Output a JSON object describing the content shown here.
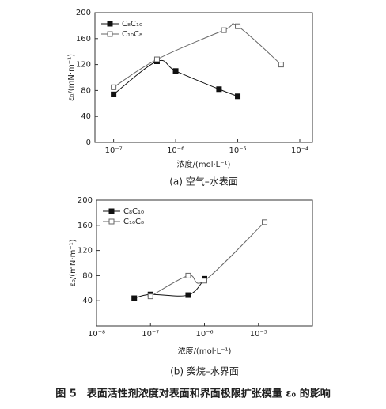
{
  "chart_data": [
    {
      "type": "line",
      "xlog": true,
      "caption": "(a) 空气–水表面",
      "xlabel": "浓度/(mol·L⁻¹)",
      "ylabel": "ε₀/(mN·m⁻¹)",
      "legend": "upper left",
      "xlim": [
        5e-08,
        0.00016
      ],
      "xticks": [
        {
          "value": 1e-07,
          "label": "10⁻⁷"
        },
        {
          "value": 1e-06,
          "label": "10⁻⁶"
        },
        {
          "value": 1e-05,
          "label": "10⁻⁵"
        },
        {
          "value": 0.0001,
          "label": "10⁻⁴"
        }
      ],
      "ylim": [
        0,
        200
      ],
      "yticks": [
        0,
        40,
        80,
        120,
        160,
        200
      ],
      "series": [
        {
          "name": "C₈C₁₀",
          "color": "#111",
          "marker": "filled",
          "x": [
            1e-07,
            5e-07,
            1e-06,
            5e-06,
            1e-05
          ],
          "values": [
            74,
            125,
            110,
            82,
            71
          ]
        },
        {
          "name": "C₁₀C₈",
          "color": "#666",
          "marker": "open",
          "x": [
            1e-07,
            5e-07,
            6e-06,
            1e-05,
            5e-05
          ],
          "values": [
            85,
            128,
            173,
            179,
            120
          ]
        }
      ]
    },
    {
      "type": "line",
      "xlog": true,
      "caption": "(b) 癸烷–水界面",
      "xlabel": "浓度/(mol·L⁻¹)",
      "ylabel": "ε₀/(mN·m⁻¹)",
      "legend": "upper left",
      "xlim": [
        1e-08,
        0.0001
      ],
      "xticks": [
        {
          "value": 1e-08,
          "label": "10⁻⁸"
        },
        {
          "value": 1e-07,
          "label": "10⁻⁷"
        },
        {
          "value": 1e-06,
          "label": "10⁻⁶"
        },
        {
          "value": 1e-05,
          "label": "10⁻⁵"
        }
      ],
      "ylim": [
        0,
        200
      ],
      "yticks": [
        40,
        80,
        120,
        160,
        200
      ],
      "series": [
        {
          "name": "C₈C₁₀",
          "color": "#111",
          "marker": "filled",
          "x": [
            5e-08,
            1e-07,
            5e-07,
            1e-06
          ],
          "values": [
            44,
            50,
            49,
            75
          ]
        },
        {
          "name": "C₁₀C₈",
          "color": "#666",
          "marker": "open",
          "x": [
            1e-07,
            5e-07,
            1e-06,
            1.3e-05
          ],
          "values": [
            47,
            80,
            72,
            165
          ]
        }
      ]
    }
  ],
  "figure_caption": "图 5　表面活性剂浓度对表面和界面极限扩张模量 ε₀ 的影响"
}
